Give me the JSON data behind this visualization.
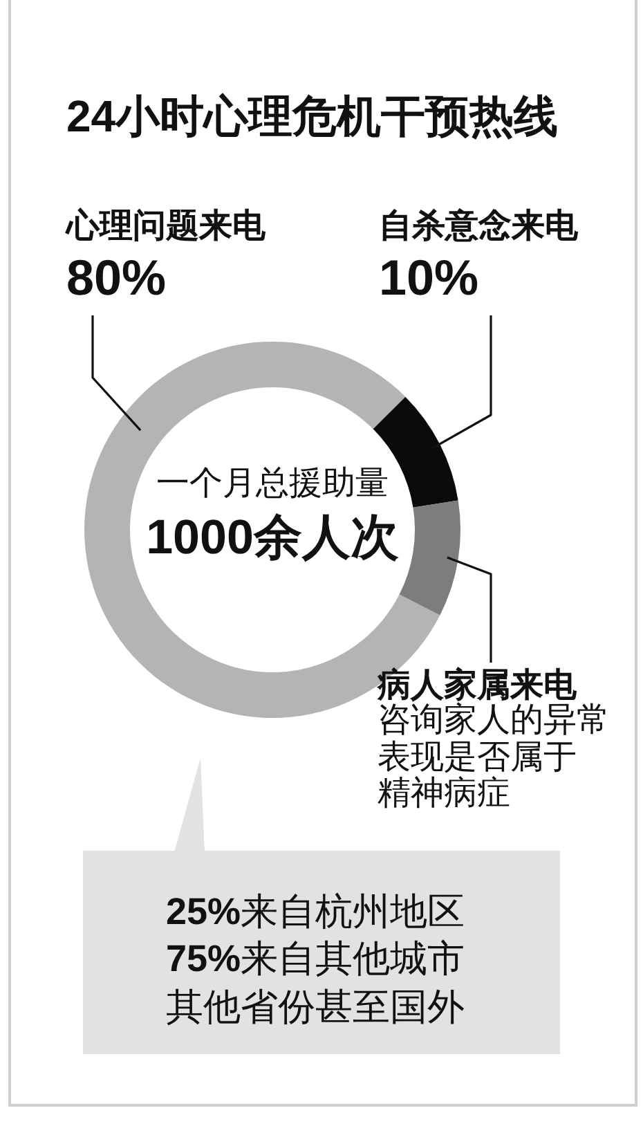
{
  "chart_data": {
    "type": "donut",
    "title": "24小时心理危机干预热线",
    "categories": [
      "心理问题来电",
      "自杀意念来电",
      "病人家属来电"
    ],
    "values": [
      80,
      10,
      10
    ],
    "colors": [
      "#b4b4b4",
      "#0a0a0a",
      "#7d7d7d"
    ],
    "value_labels": [
      "80%",
      "10%",
      null
    ],
    "annotations": [
      "一个月总援助量",
      "1000余人次",
      "咨询家人的异常",
      "表现是否属于",
      "精神病症",
      "25%来自杭州地区",
      "75%来自其他城市",
      "其他省份甚至国外"
    ]
  }
}
